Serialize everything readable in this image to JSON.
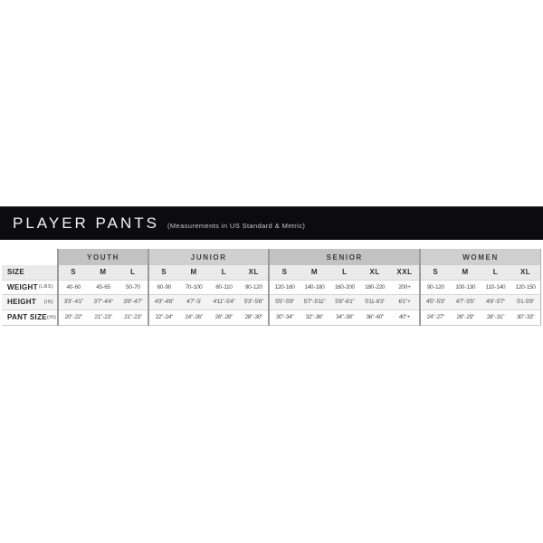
{
  "header": {
    "title": "PLAYER PANTS",
    "subtitle": "(Measurements in US Standard & Metric)"
  },
  "colors": {
    "header_bg": "#0c0c10",
    "group_header_dark": "#c2c2c2",
    "group_header_light": "#cfcfcf",
    "row_stripe": "#eaeaea"
  },
  "chart_data": {
    "type": "table",
    "title": "PLAYER PANTS",
    "subtitle": "(Measurements in US Standard & Metric)",
    "row_labels": {
      "size": "SIZE",
      "weight": "WEIGHT",
      "weight_unit": "(LBS)",
      "height": "HEIGHT",
      "height_unit": "(IN)",
      "pant": "PANT SIZE",
      "pant_unit": "(IN)"
    },
    "groups": [
      {
        "name": "YOUTH",
        "sizes": [
          "S",
          "M",
          "L"
        ],
        "weight": [
          "40 - 60",
          "45 - 65",
          "50 - 70"
        ],
        "height": [
          "3'3\" - 4'1\"",
          "3'7\" - 4'4\"",
          "3'9\" - 4'7\""
        ],
        "pant": [
          "20\" - 22\"",
          "21\" - 23\"",
          "21\" - 23\""
        ]
      },
      {
        "name": "JUNIOR",
        "sizes": [
          "S",
          "M",
          "L",
          "XL"
        ],
        "weight": [
          "60 - 90",
          "70 - 100",
          "80 - 110",
          "90 - 120"
        ],
        "height": [
          "4'3\" - 4'8\"",
          "4'7\" - 5'",
          "4'11\" - 5'4\"",
          "5'3\" - 5'8\""
        ],
        "pant": [
          "22\" - 24\"",
          "24\" - 26\"",
          "26\" - 28\"",
          "28\" - 30\""
        ]
      },
      {
        "name": "SENIOR",
        "sizes": [
          "S",
          "M",
          "L",
          "XL",
          "XXL"
        ],
        "weight": [
          "120 - 160",
          "140 - 180",
          "160 - 200",
          "180 - 220",
          "200 +"
        ],
        "height": [
          "5'5\" - 5'9\"",
          "5'7\" - 5'11\"",
          "5'9\" - 6'1\"",
          "5'11 - 6'3\"",
          "6'1\" +"
        ],
        "pant": [
          "30\" - 34\"",
          "32\" - 36\"",
          "34\" - 38\"",
          "36\" - 40\"",
          "40\" +"
        ]
      },
      {
        "name": "WOMEN",
        "sizes": [
          "S",
          "M",
          "L",
          "XL"
        ],
        "weight": [
          "90 - 120",
          "100 - 130",
          "110 - 140",
          "120 - 150"
        ],
        "height": [
          "4'5\" - 5'3\"",
          "4'7\" - 5'5\"",
          "4'9\" - 5'7\"",
          "5'1 - 5'9\""
        ],
        "pant": [
          "24\" - 27\"",
          "26\" - 29\"",
          "28\" - 31\"",
          "30\" - 33\""
        ]
      }
    ]
  }
}
